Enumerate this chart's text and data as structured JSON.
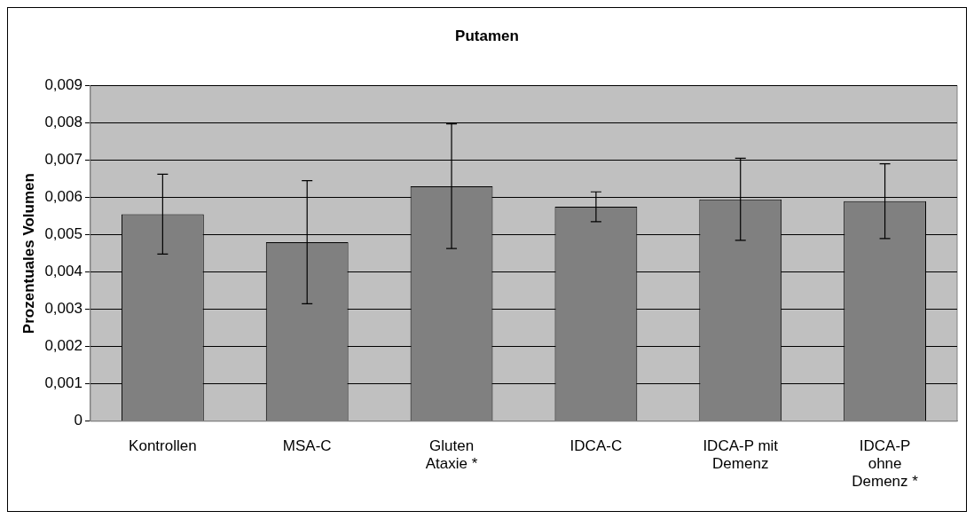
{
  "chart_data": {
    "type": "bar",
    "title": "Putamen",
    "ylabel": "Prozentuales Volumen",
    "categories": [
      "Kontrollen",
      "MSA-C",
      "Gluten Ataxie *",
      "IDCA-C",
      "IDCA-P mit Demenz",
      "IDCA-P ohne Demenz *"
    ],
    "values": [
      0.00555,
      0.0048,
      0.0063,
      0.00575,
      0.00595,
      0.0059
    ],
    "errors": [
      0.00107,
      0.00165,
      0.00167,
      0.0004,
      0.0011,
      0.001
    ],
    "color": "#808080",
    "ylim": [
      0,
      0.009
    ],
    "yticks": [
      {
        "value": 0,
        "label": "0"
      },
      {
        "value": 0.001,
        "label": "0,001"
      },
      {
        "value": 0.002,
        "label": "0,002"
      },
      {
        "value": 0.003,
        "label": "0,003"
      },
      {
        "value": 0.004,
        "label": "0,004"
      },
      {
        "value": 0.005,
        "label": "0,005"
      },
      {
        "value": 0.006,
        "label": "0,006"
      },
      {
        "value": 0.007,
        "label": "0,007"
      },
      {
        "value": 0.008,
        "label": "0,008"
      },
      {
        "value": 0.009,
        "label": "0,009"
      }
    ],
    "grid": "y",
    "legend": false
  }
}
